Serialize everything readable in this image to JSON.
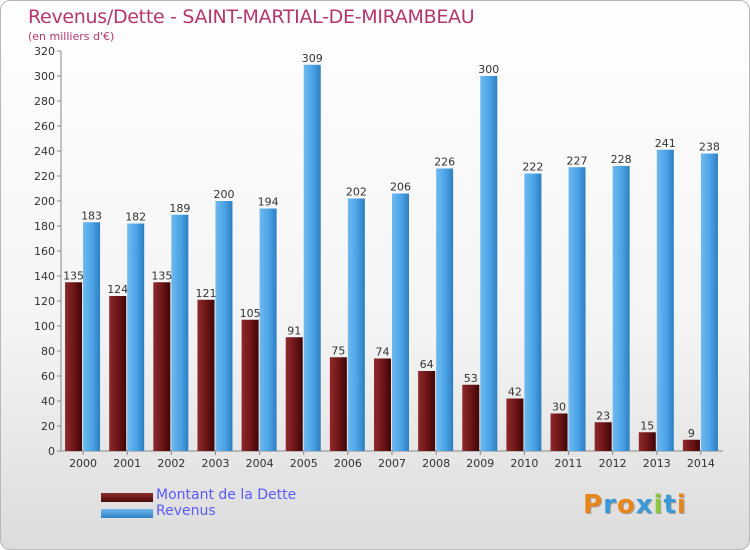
{
  "header": {
    "title": "Revenus/Dette - SAINT-MARTIAL-DE-MIRAMBEAU",
    "subtitle": "(en milliers d'€)"
  },
  "legend": {
    "items": [
      {
        "label": "Montant de la Dette",
        "color": "#6b1416"
      },
      {
        "label": "Revenus",
        "color": "#4aa3e6"
      }
    ]
  },
  "logo": {
    "letters": [
      "P",
      "r",
      "o",
      "x",
      "i",
      "t",
      "i"
    ],
    "colors": [
      "#e8861c",
      "#3a9ad9",
      "#e8861c",
      "#3a9ad9",
      "#8dc63f",
      "#3a9ad9",
      "#e8861c"
    ]
  },
  "chart_data": {
    "type": "bar",
    "categories": [
      "2000",
      "2001",
      "2002",
      "2003",
      "2004",
      "2005",
      "2006",
      "2007",
      "2008",
      "2009",
      "2010",
      "2011",
      "2012",
      "2013",
      "2014"
    ],
    "series": [
      {
        "name": "Montant de la Dette",
        "color": "#6b1416",
        "values": [
          135,
          124,
          135,
          121,
          105,
          91,
          75,
          74,
          64,
          53,
          42,
          30,
          23,
          15,
          9
        ]
      },
      {
        "name": "Revenus",
        "color": "#4aa3e6",
        "values": [
          183,
          182,
          189,
          200,
          194,
          309,
          202,
          206,
          226,
          300,
          222,
          227,
          228,
          241,
          238
        ]
      }
    ],
    "ylim": [
      0,
      320
    ],
    "yticks": [
      0,
      20,
      40,
      60,
      80,
      100,
      120,
      140,
      160,
      180,
      200,
      220,
      240,
      260,
      280,
      300,
      320
    ],
    "grid": false,
    "legend_position": "bottom-left"
  }
}
